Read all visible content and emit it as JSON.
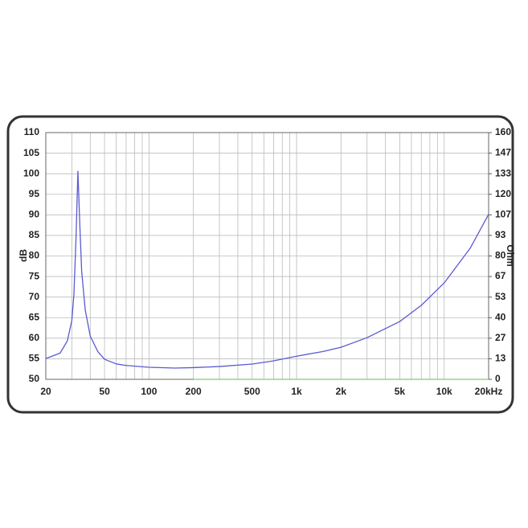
{
  "chart_data": {
    "type": "line",
    "y_label": "dB",
    "y2_label": "Ohm",
    "xscale": "log",
    "xlim": [
      20,
      20000
    ],
    "xticks": [
      20,
      50,
      100,
      200,
      500,
      {
        "value": 1000,
        "label": "1k"
      },
      {
        "value": 2000,
        "label": "2k"
      },
      {
        "value": 5000,
        "label": "5k"
      },
      {
        "value": 10000,
        "label": "10k"
      },
      {
        "value": 20000,
        "label": "20kHz"
      }
    ],
    "minor_xticks": [
      30,
      40,
      60,
      70,
      80,
      90,
      300,
      400,
      600,
      700,
      800,
      900,
      3000,
      4000,
      6000,
      7000,
      8000,
      9000
    ],
    "ylim": [
      50,
      110
    ],
    "yticks": [
      50,
      55,
      60,
      65,
      70,
      75,
      80,
      85,
      90,
      95,
      100,
      105,
      110
    ],
    "y2lim": [
      0,
      160
    ],
    "y2ticks": [
      0,
      {
        "value": 13.33,
        "label": "13"
      },
      {
        "value": 26.67,
        "label": "27"
      },
      40,
      {
        "value": 53.33,
        "label": "53"
      },
      {
        "value": 66.67,
        "label": "67"
      },
      80,
      {
        "value": 93.33,
        "label": "93"
      },
      {
        "value": 106.67,
        "label": "107"
      },
      120,
      {
        "value": 133.33,
        "label": "133"
      },
      {
        "value": 146.67,
        "label": "147"
      },
      160
    ],
    "grid": true,
    "series": [
      {
        "color": "#5a5ad2",
        "axis": "y2",
        "x": [
          20,
          25,
          28,
          30,
          31,
          32,
          33,
          34,
          35,
          37,
          40,
          45,
          50,
          60,
          70,
          100,
          150,
          200,
          300,
          500,
          700,
          1000,
          1500,
          2000,
          3000,
          5000,
          7000,
          10000,
          15000,
          20000
        ],
        "values": [
          13.5,
          17,
          25,
          38,
          55,
          90,
          135,
          100,
          70,
          45,
          28,
          18,
          13,
          10,
          9,
          7.8,
          7.3,
          7.6,
          8.3,
          9.9,
          12,
          15,
          18,
          20.8,
          27,
          37.5,
          48,
          62.5,
          85,
          107
        ]
      },
      {
        "color": "#7ccf6a",
        "x": [
          200,
          20000
        ],
        "values": [
          50,
          50
        ]
      }
    ]
  }
}
